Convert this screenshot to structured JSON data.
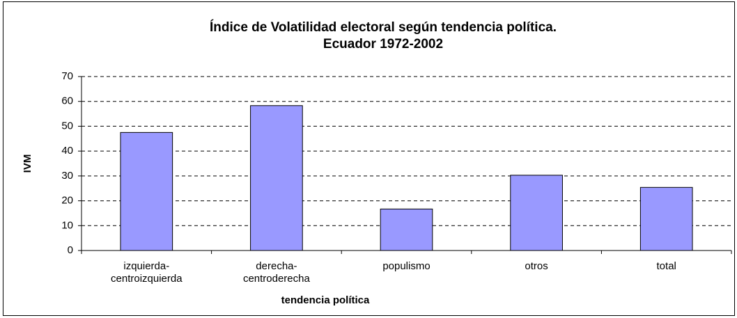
{
  "chart_data": {
    "type": "bar",
    "title": "Índice de Volatilidad electoral según tendencia política.",
    "subtitle": "Ecuador 1972-2002",
    "x_label": "tendencia política",
    "y_label": "IVM",
    "categories": [
      [
        "izquierda-",
        "centroizquierda"
      ],
      [
        "derecha-",
        "centroderecha"
      ],
      [
        "populismo"
      ],
      [
        "otros"
      ],
      [
        "total"
      ]
    ],
    "values": [
      47.5,
      58.3,
      16.7,
      30.3,
      25.4
    ],
    "color": "#9999ff",
    "ylim": [
      0,
      70
    ],
    "yticks": [
      0,
      10,
      20,
      30,
      40,
      50,
      60,
      70
    ],
    "grid": true
  }
}
